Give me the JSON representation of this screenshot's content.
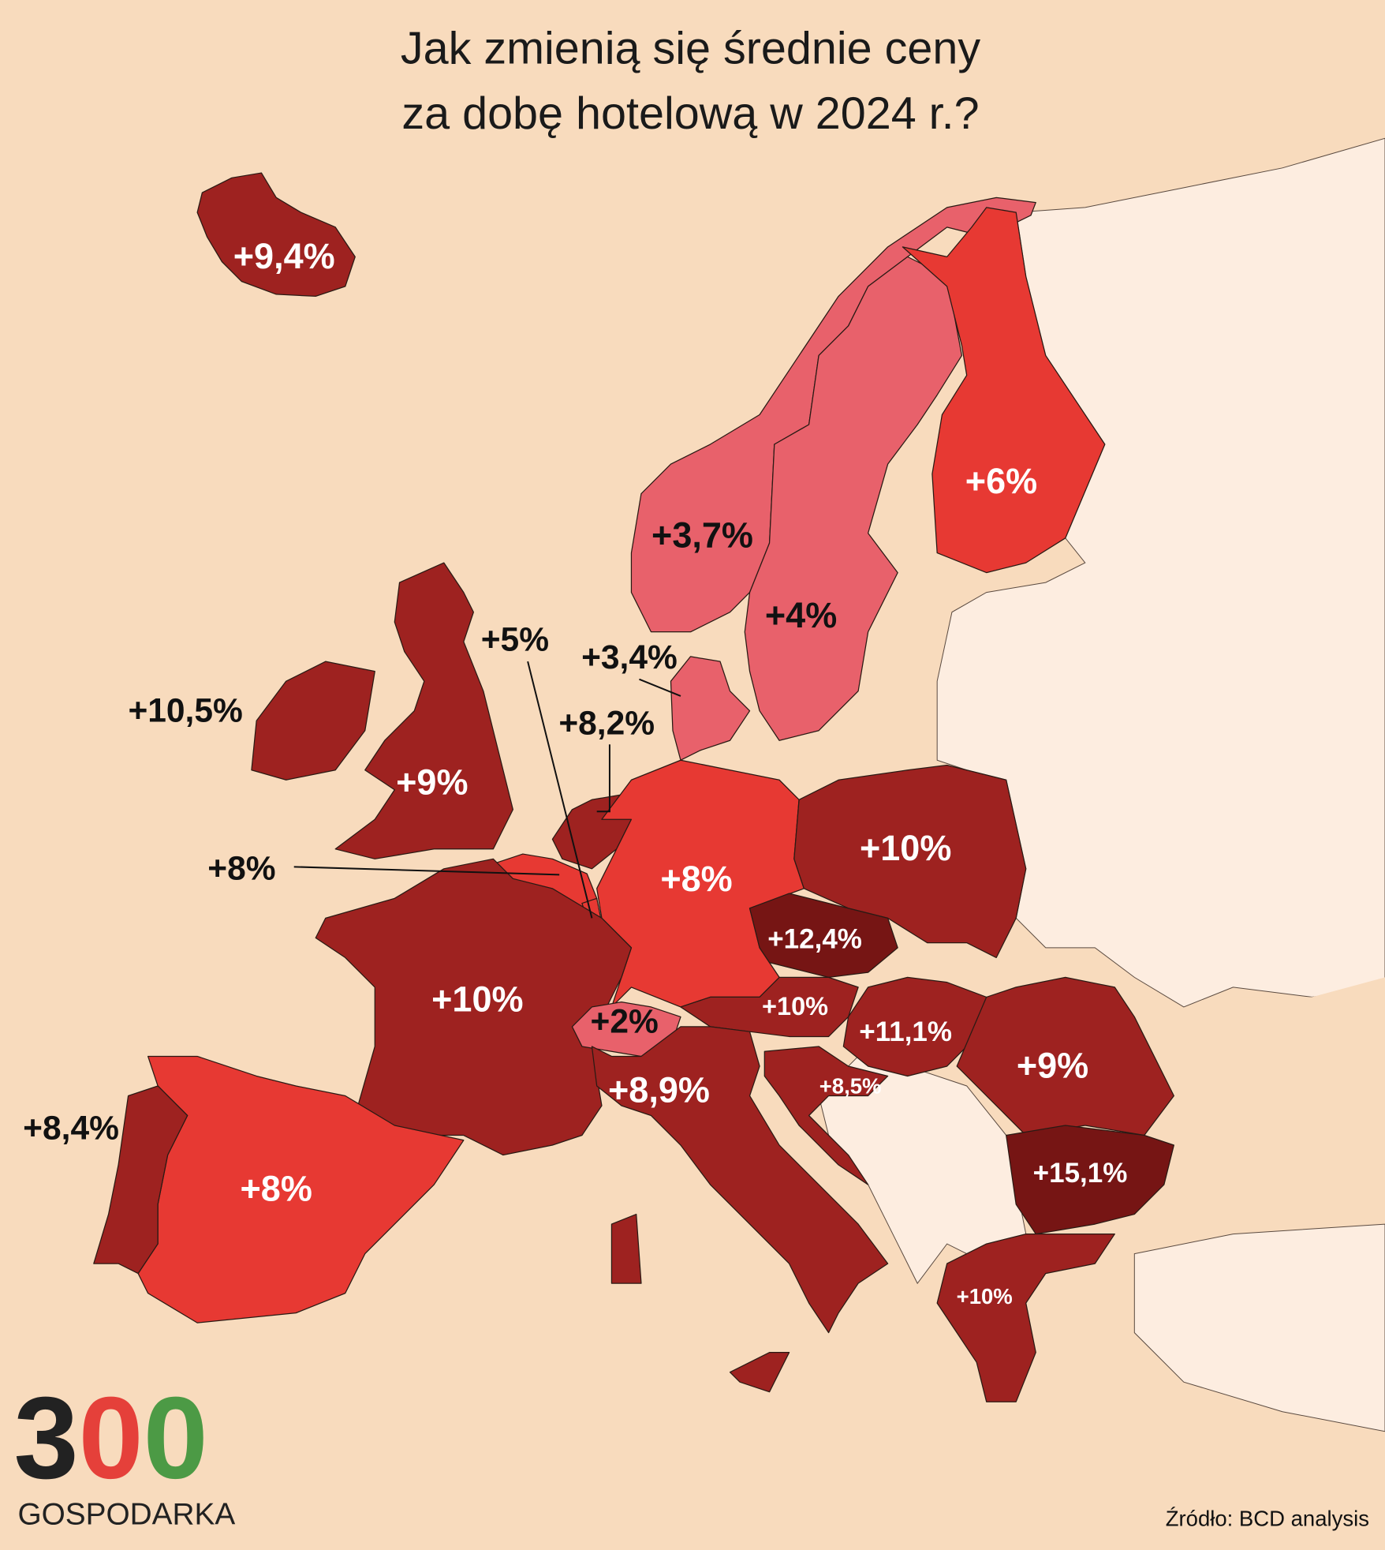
{
  "title": [
    "Jak zmienią się średnie ceny",
    "za dobę hotelową w 2024 r.?"
  ],
  "regions": [
    {
      "label": "+9,4%",
      "color": "#9e2220",
      "label_color": "#ffffff"
    },
    {
      "label": "+3,7%",
      "color": "#e8616b",
      "label_color": "#111111"
    },
    {
      "label": "+4%",
      "color": "#e8616b",
      "label_color": "#111111"
    },
    {
      "label": "+6%",
      "color": "#e73933",
      "label_color": "#ffffff"
    },
    {
      "label": "+3,4%",
      "color": "#e8616b",
      "label_color": "#111111"
    },
    {
      "label": "+9%",
      "color": "#9e2220",
      "label_color": "#ffffff"
    },
    {
      "label": "+10,5%",
      "color": "#9e2220",
      "label_color": "#111111"
    },
    {
      "label": "+8,2%",
      "color": "#9e2220",
      "label_color": "#111111"
    },
    {
      "label": "+8%",
      "color": "#e73933",
      "label_color": "#111111"
    },
    {
      "label": "+5%",
      "color": "#e73933",
      "label_color": "#111111"
    },
    {
      "label": "+8%",
      "color": "#e73933",
      "label_color": "#ffffff"
    },
    {
      "label": "+10%",
      "color": "#9e2220",
      "label_color": "#ffffff"
    },
    {
      "label": "+12,4%",
      "color": "#761514",
      "label_color": "#ffffff"
    },
    {
      "label": "+10%",
      "color": "#9e2220",
      "label_color": "#ffffff"
    },
    {
      "label": "+11,1%",
      "color": "#9e2220",
      "label_color": "#ffffff"
    },
    {
      "label": "+9%",
      "color": "#9e2220",
      "label_color": "#ffffff"
    },
    {
      "label": "+8,5%",
      "color": "#9e2220",
      "label_color": "#ffffff"
    },
    {
      "label": "+15,1%",
      "color": "#761514",
      "label_color": "#ffffff"
    },
    {
      "label": "+10%",
      "color": "#9e2220",
      "label_color": "#ffffff"
    },
    {
      "label": "+10%",
      "color": "#9e2220",
      "label_color": "#ffffff"
    },
    {
      "label": "+2%",
      "color": "#e8616b",
      "label_color": "#111111"
    },
    {
      "label": "+8,9%",
      "color": "#9e2220",
      "label_color": "#ffffff"
    },
    {
      "label": "+8%",
      "color": "#e73933",
      "label_color": "#ffffff"
    },
    {
      "label": "+8,4%",
      "color": "#9e2220",
      "label_color": "#111111"
    }
  ],
  "logo": {
    "digits": [
      "3",
      "0",
      "0"
    ],
    "digit_colors": [
      "#222222",
      "#e5403a",
      "#4c9a45"
    ],
    "name": "GOSPODARKA"
  },
  "source": "Źródło: BCD analysis"
}
